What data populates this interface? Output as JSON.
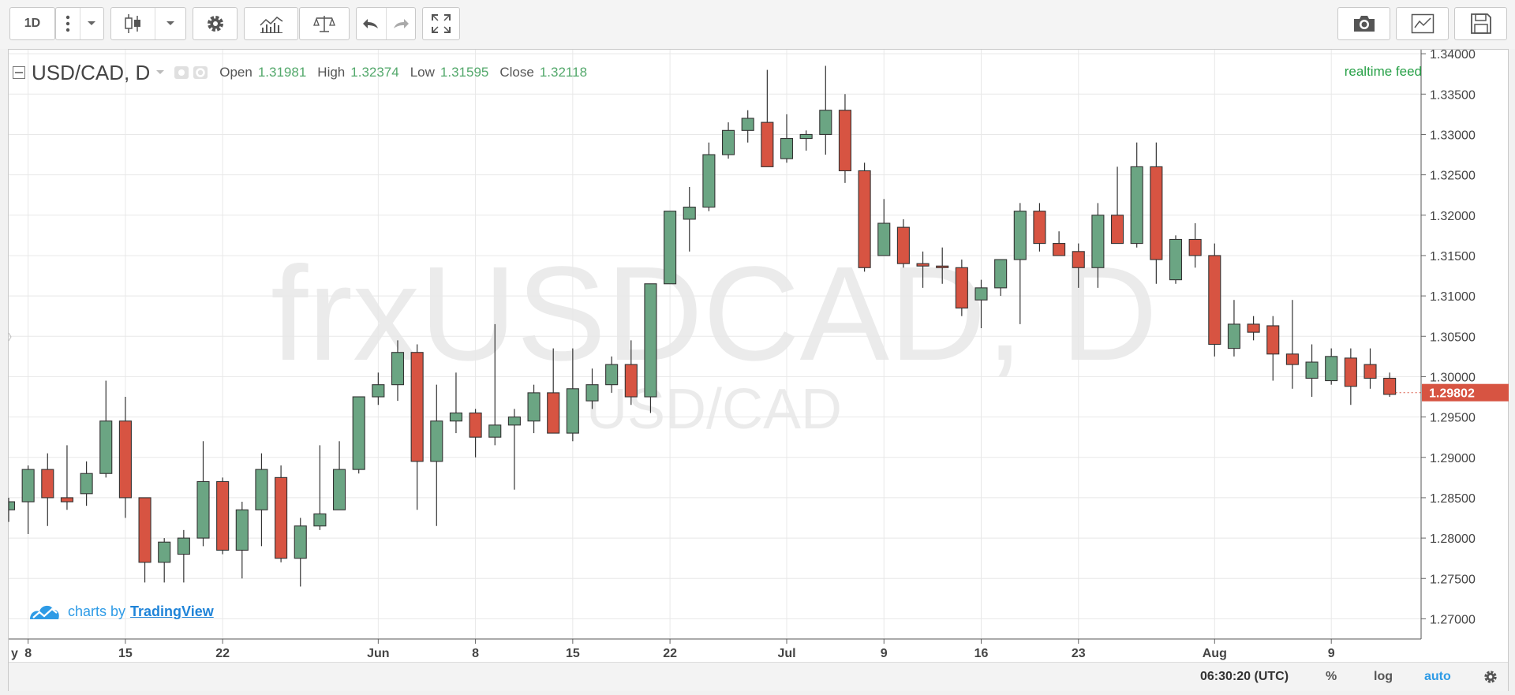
{
  "toolbar": {
    "interval_label": "1D",
    "icons": [
      "more-icon",
      "chevron-down-icon",
      "candles-icon",
      "chevron-down-icon",
      "gear-icon",
      "indicators-icon",
      "compare-icon",
      "undo-icon",
      "redo-icon",
      "fullscreen-icon",
      "camera-icon",
      "chart-properties-icon",
      "save-icon"
    ]
  },
  "legend": {
    "symbol": "USD/CAD, D",
    "open_label": "Open",
    "open": "1.31981",
    "high_label": "High",
    "high": "1.32374",
    "low_label": "Low",
    "low": "1.31595",
    "close_label": "Close",
    "close": "1.32118"
  },
  "realtime_feed": "realtime feed",
  "watermark": {
    "main": "frxUSDCAD, D",
    "sub": "USD/CAD"
  },
  "branding": {
    "prefix": "charts by",
    "link": "TradingView"
  },
  "bottom_bar": {
    "time": "06:30:20 (UTC)",
    "percent": "%",
    "log": "log",
    "auto": "auto"
  },
  "colors": {
    "up": "#6ba583",
    "down": "#d75442",
    "auto_link": "#2e9be6",
    "last_price_tag": "#d75442"
  },
  "chart_data": {
    "type": "candlestick",
    "ylim": [
      1.2675,
      1.3405
    ],
    "yticks": [
      "1.34000",
      "1.33500",
      "1.33000",
      "1.32500",
      "1.32000",
      "1.31500",
      "1.31000",
      "1.30500",
      "1.30000",
      "1.29500",
      "1.29000",
      "1.28500",
      "1.28000",
      "1.27500",
      "1.27000"
    ],
    "xticks": [
      {
        "i": -4,
        "label": "y"
      },
      {
        "i": 1,
        "label": "8"
      },
      {
        "i": 6,
        "label": "15"
      },
      {
        "i": 11,
        "label": "22"
      },
      {
        "i": 19,
        "label": "Jun"
      },
      {
        "i": 24,
        "label": "8"
      },
      {
        "i": 29,
        "label": "15"
      },
      {
        "i": 34,
        "label": "22"
      },
      {
        "i": 40,
        "label": "Jul"
      },
      {
        "i": 45,
        "label": "9"
      },
      {
        "i": 50,
        "label": "16"
      },
      {
        "i": 55,
        "label": "23"
      },
      {
        "i": 62,
        "label": "Aug"
      },
      {
        "i": 68,
        "label": "9"
      }
    ],
    "last_price": "1.29802",
    "last_price_value": 1.29802,
    "candles": [
      [
        1.2835,
        1.285,
        1.282,
        1.2845
      ],
      [
        1.2845,
        1.289,
        1.2805,
        1.2885
      ],
      [
        1.2885,
        1.2905,
        1.2815,
        1.285
      ],
      [
        1.285,
        1.2915,
        1.2835,
        1.2845
      ],
      [
        1.2855,
        1.2895,
        1.284,
        1.288
      ],
      [
        1.288,
        1.2995,
        1.2875,
        1.2945
      ],
      [
        1.2945,
        1.2975,
        1.2825,
        1.285
      ],
      [
        1.285,
        1.285,
        1.2745,
        1.277
      ],
      [
        1.277,
        1.28,
        1.2745,
        1.2795
      ],
      [
        1.278,
        1.281,
        1.2745,
        1.28
      ],
      [
        1.28,
        1.292,
        1.279,
        1.287
      ],
      [
        1.287,
        1.2875,
        1.278,
        1.2785
      ],
      [
        1.2785,
        1.2845,
        1.275,
        1.2835
      ],
      [
        1.2835,
        1.2905,
        1.279,
        1.2885
      ],
      [
        1.2875,
        1.289,
        1.277,
        1.2775
      ],
      [
        1.2775,
        1.2825,
        1.274,
        1.2815
      ],
      [
        1.2815,
        1.2915,
        1.281,
        1.283
      ],
      [
        1.2835,
        1.292,
        1.2835,
        1.2885
      ],
      [
        1.2885,
        1.2975,
        1.288,
        1.2975
      ],
      [
        1.2975,
        1.3005,
        1.2965,
        1.299
      ],
      [
        1.299,
        1.3045,
        1.297,
        1.303
      ],
      [
        1.303,
        1.304,
        1.2835,
        1.2895
      ],
      [
        1.2895,
        1.299,
        1.2815,
        1.2945
      ],
      [
        1.2945,
        1.3005,
        1.293,
        1.2955
      ],
      [
        1.2955,
        1.296,
        1.29,
        1.2925
      ],
      [
        1.2925,
        1.3065,
        1.2915,
        1.294
      ],
      [
        1.294,
        1.296,
        1.286,
        1.295
      ],
      [
        1.2945,
        1.299,
        1.293,
        1.298
      ],
      [
        1.298,
        1.3035,
        1.2935,
        1.293
      ],
      [
        1.293,
        1.3035,
        1.292,
        1.2985
      ],
      [
        1.297,
        1.301,
        1.296,
        1.299
      ],
      [
        1.299,
        1.3025,
        1.298,
        1.3015
      ],
      [
        1.3015,
        1.3045,
        1.2965,
        1.2975
      ],
      [
        1.2975,
        1.3115,
        1.2955,
        1.3115
      ],
      [
        1.3115,
        1.3205,
        1.3115,
        1.3205
      ],
      [
        1.3195,
        1.3235,
        1.3155,
        1.321
      ],
      [
        1.321,
        1.329,
        1.3205,
        1.3275
      ],
      [
        1.3275,
        1.3315,
        1.327,
        1.3305
      ],
      [
        1.3305,
        1.333,
        1.329,
        1.332
      ],
      [
        1.3315,
        1.338,
        1.326,
        1.326
      ],
      [
        1.327,
        1.3325,
        1.3265,
        1.3295
      ],
      [
        1.3295,
        1.3305,
        1.328,
        1.33
      ],
      [
        1.33,
        1.3385,
        1.3275,
        1.333
      ],
      [
        1.333,
        1.335,
        1.324,
        1.3255
      ],
      [
        1.3255,
        1.3265,
        1.313,
        1.3135
      ],
      [
        1.315,
        1.322,
        1.315,
        1.319
      ],
      [
        1.3185,
        1.3195,
        1.3135,
        1.314
      ],
      [
        1.314,
        1.3155,
        1.311,
        1.3137
      ],
      [
        1.3137,
        1.316,
        1.3115,
        1.3135
      ],
      [
        1.3135,
        1.3145,
        1.3075,
        1.3085
      ],
      [
        1.3095,
        1.312,
        1.306,
        1.311
      ],
      [
        1.311,
        1.314,
        1.31,
        1.3145
      ],
      [
        1.3145,
        1.3215,
        1.3065,
        1.3205
      ],
      [
        1.3205,
        1.3215,
        1.3155,
        1.3165
      ],
      [
        1.3165,
        1.318,
        1.315,
        1.315
      ],
      [
        1.3155,
        1.3165,
        1.311,
        1.3135
      ],
      [
        1.3135,
        1.3215,
        1.311,
        1.32
      ],
      [
        1.32,
        1.326,
        1.3165,
        1.3165
      ],
      [
        1.3165,
        1.329,
        1.316,
        1.326
      ],
      [
        1.326,
        1.329,
        1.3115,
        1.3145
      ],
      [
        1.312,
        1.3175,
        1.3115,
        1.317
      ],
      [
        1.317,
        1.319,
        1.3135,
        1.315
      ],
      [
        1.315,
        1.3165,
        1.3025,
        1.304
      ],
      [
        1.3035,
        1.3095,
        1.3025,
        1.3065
      ],
      [
        1.3065,
        1.3075,
        1.3045,
        1.3055
      ],
      [
        1.3063,
        1.3075,
        1.2995,
        1.3028
      ],
      [
        1.3028,
        1.3095,
        1.2985,
        1.3015
      ],
      [
        1.2998,
        1.304,
        1.2975,
        1.3018
      ],
      [
        1.2995,
        1.3035,
        1.299,
        1.3025
      ],
      [
        1.3023,
        1.3035,
        1.2965,
        1.2988
      ],
      [
        1.3015,
        1.3035,
        1.2985,
        1.2998
      ],
      [
        1.2998,
        1.3005,
        1.2975,
        1.2978
      ]
    ]
  }
}
